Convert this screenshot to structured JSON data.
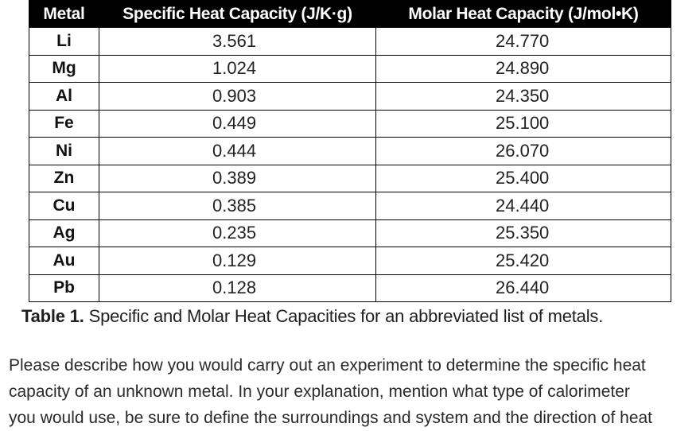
{
  "table": {
    "headers": [
      "Metal",
      "Specific Heat Capacity (J/K·g)",
      "Molar Heat Capacity (J/mol•K)"
    ],
    "rows": [
      {
        "metal": "Li",
        "specific": "3.561",
        "molar": "24.770"
      },
      {
        "metal": "Mg",
        "specific": "1.024",
        "molar": "24.890"
      },
      {
        "metal": "Al",
        "specific": "0.903",
        "molar": "24.350"
      },
      {
        "metal": "Fe",
        "specific": "0.449",
        "molar": "25.100"
      },
      {
        "metal": "Ni",
        "specific": "0.444",
        "molar": "26.070"
      },
      {
        "metal": "Zn",
        "specific": "0.389",
        "molar": "25.400"
      },
      {
        "metal": "Cu",
        "specific": "0.385",
        "molar": "24.440"
      },
      {
        "metal": "Ag",
        "specific": "0.235",
        "molar": "25.350"
      },
      {
        "metal": "Au",
        "specific": "0.129",
        "molar": "25.420"
      },
      {
        "metal": "Pb",
        "specific": "0.128",
        "molar": "26.440"
      }
    ]
  },
  "caption": {
    "label": "Table 1.",
    "text": " Specific and Molar Heat Capacities for an abbreviated list of metals."
  },
  "prompt": {
    "lines": [
      "Please describe how you would carry out an experiment to determine the specific heat",
      "capacity of an unknown metal. In your explanation, mention what type of calorimeter",
      "you would use, be sure to define the surroundings and system and the direction of heat"
    ]
  }
}
